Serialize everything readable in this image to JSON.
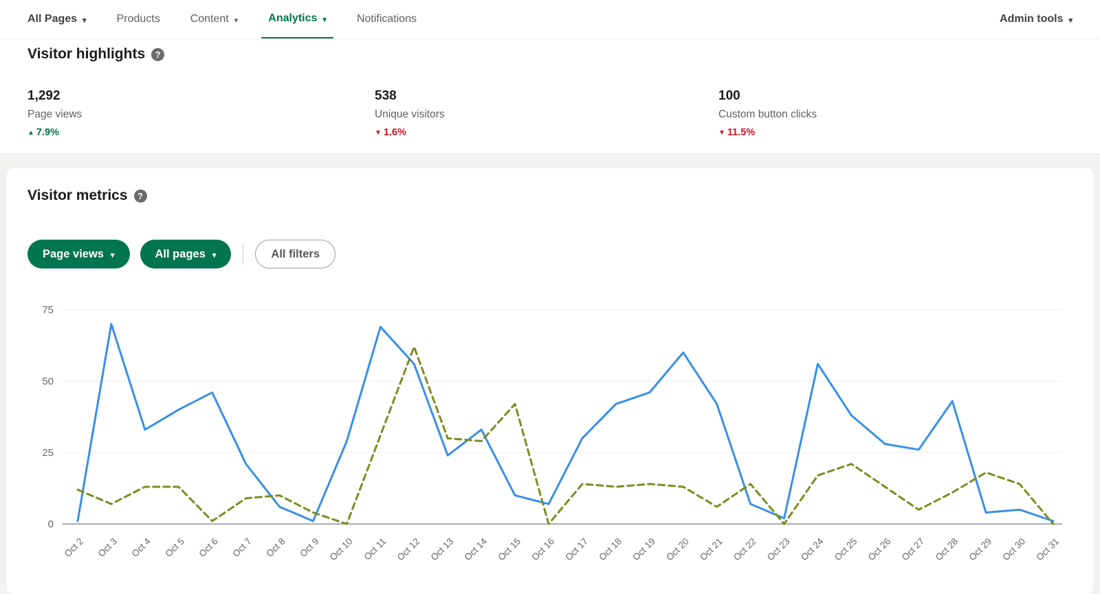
{
  "nav": {
    "items": [
      {
        "label": "All Pages",
        "caret": true,
        "active": false,
        "strong": true
      },
      {
        "label": "Products",
        "caret": false,
        "active": false,
        "strong": false
      },
      {
        "label": "Content",
        "caret": true,
        "active": false,
        "strong": false
      },
      {
        "label": "Analytics",
        "caret": true,
        "active": true,
        "strong": false
      },
      {
        "label": "Notifications",
        "caret": false,
        "active": false,
        "strong": false
      }
    ],
    "right_item": {
      "label": "Admin tools",
      "caret": true
    }
  },
  "icons": {
    "caret_down": "▾",
    "help": "?",
    "up_arrow": "▲",
    "down_arrow": "▼"
  },
  "highlights": {
    "title": "Visitor highlights",
    "stats": [
      {
        "value": "1,292",
        "label": "Page views",
        "delta": "7.9%",
        "direction": "up"
      },
      {
        "value": "538",
        "label": "Unique visitors",
        "delta": "1.6%",
        "direction": "down"
      },
      {
        "value": "100",
        "label": "Custom button clicks",
        "delta": "11.5%",
        "direction": "down"
      }
    ]
  },
  "metrics": {
    "title": "Visitor metrics",
    "filters": [
      {
        "label": "Page views",
        "style": "primary",
        "caret": true
      },
      {
        "label": "All pages",
        "style": "primary",
        "caret": true
      },
      {
        "label": "All filters",
        "style": "secondary",
        "caret": false
      }
    ]
  },
  "chart_data": {
    "type": "line",
    "title": "Visitor metrics",
    "x": [
      "Oct 2",
      "Oct 3",
      "Oct 4",
      "Oct 5",
      "Oct 6",
      "Oct 7",
      "Oct 8",
      "Oct 9",
      "Oct 10",
      "Oct 11",
      "Oct 12",
      "Oct 13",
      "Oct 14",
      "Oct 15",
      "Oct 16",
      "Oct 17",
      "Oct 18",
      "Oct 19",
      "Oct 20",
      "Oct 21",
      "Oct 22",
      "Oct 23",
      "Oct 24",
      "Oct 25",
      "Oct 26",
      "Oct 27",
      "Oct 28",
      "Oct 29",
      "Oct 30",
      "Oct 31"
    ],
    "series": [
      {
        "name": "series_1",
        "style": "solid",
        "color": "#378fe9",
        "values": [
          1,
          70,
          33,
          40,
          46,
          21,
          6,
          1,
          29,
          69,
          56,
          24,
          33,
          10,
          7,
          30,
          42,
          46,
          60,
          42,
          7,
          2,
          56,
          38,
          28,
          26,
          43,
          4,
          5,
          1
        ]
      },
      {
        "name": "series_2",
        "style": "dashed",
        "color": "#7d8b1f",
        "values": [
          12,
          7,
          13,
          13,
          1,
          9,
          10,
          4,
          0,
          31,
          62,
          30,
          29,
          42,
          0,
          14,
          13,
          14,
          13,
          6,
          14,
          0,
          17,
          21,
          13,
          5,
          11,
          18,
          14,
          0
        ]
      }
    ],
    "xlabel": "",
    "ylabel": "",
    "ylim": [
      0,
      75
    ],
    "yticks": [
      0,
      25,
      50,
      75
    ],
    "grid": true,
    "legend": "none"
  },
  "colors": {
    "accent_green": "#01754f",
    "positive": "#057642",
    "negative": "#d11124",
    "axis_line": "#8a94a3",
    "gridline": "#ececec",
    "axis_text": "#666666"
  }
}
